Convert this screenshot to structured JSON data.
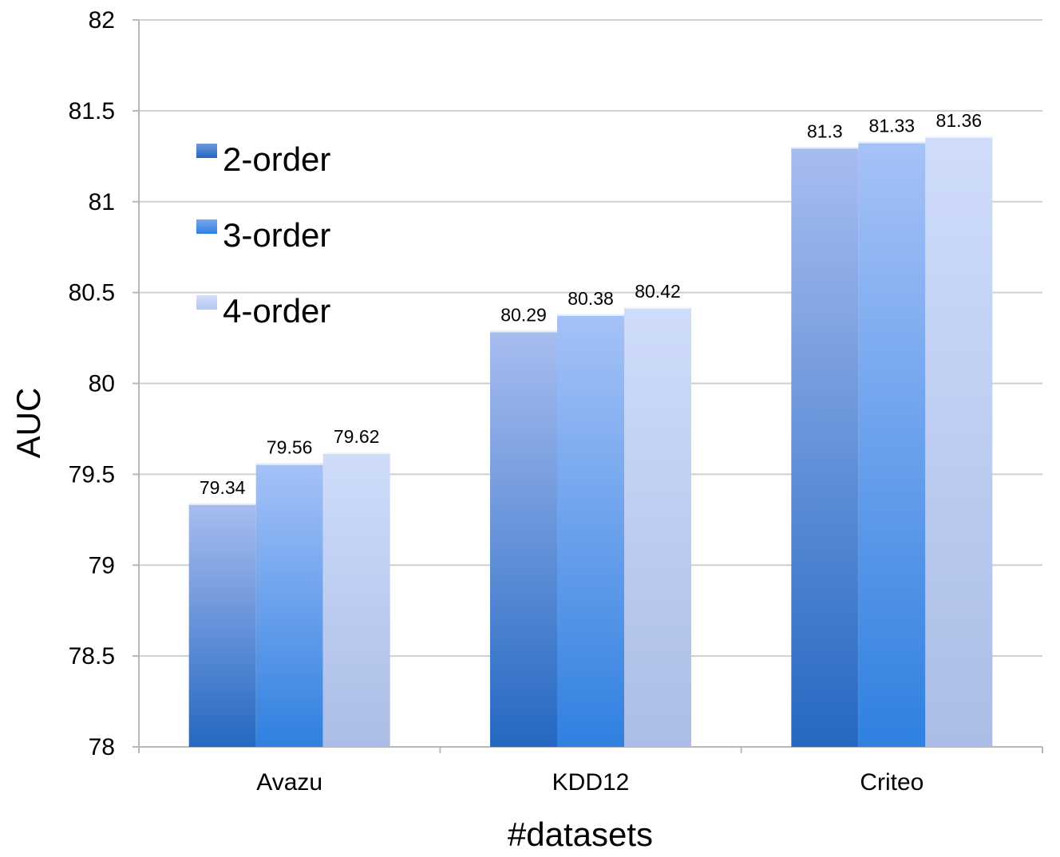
{
  "chart_data": {
    "type": "bar",
    "title": "",
    "xlabel": "#datasets",
    "ylabel": "AUC",
    "categories": [
      "Avazu",
      "KDD12",
      "Criteo"
    ],
    "ylim": [
      78,
      82
    ],
    "yticks": [
      78,
      78.5,
      79,
      79.5,
      80,
      80.5,
      81,
      81.5,
      82
    ],
    "ytick_labels": [
      "78",
      "78.5",
      "79",
      "79.5",
      "80",
      "80.5",
      "81",
      "81.5",
      "82"
    ],
    "grid": true,
    "legend_position": "top-left",
    "series": [
      {
        "name": "2-order",
        "values": [
          79.34,
          80.29,
          81.3
        ],
        "labels": [
          "79.34",
          "80.29",
          "81.3"
        ]
      },
      {
        "name": "3-order",
        "values": [
          79.56,
          80.38,
          81.33
        ],
        "labels": [
          "79.56",
          "80.38",
          "81.33"
        ]
      },
      {
        "name": "4-order",
        "values": [
          79.62,
          80.42,
          81.36
        ],
        "labels": [
          "79.62",
          "80.42",
          "81.36"
        ]
      }
    ]
  }
}
